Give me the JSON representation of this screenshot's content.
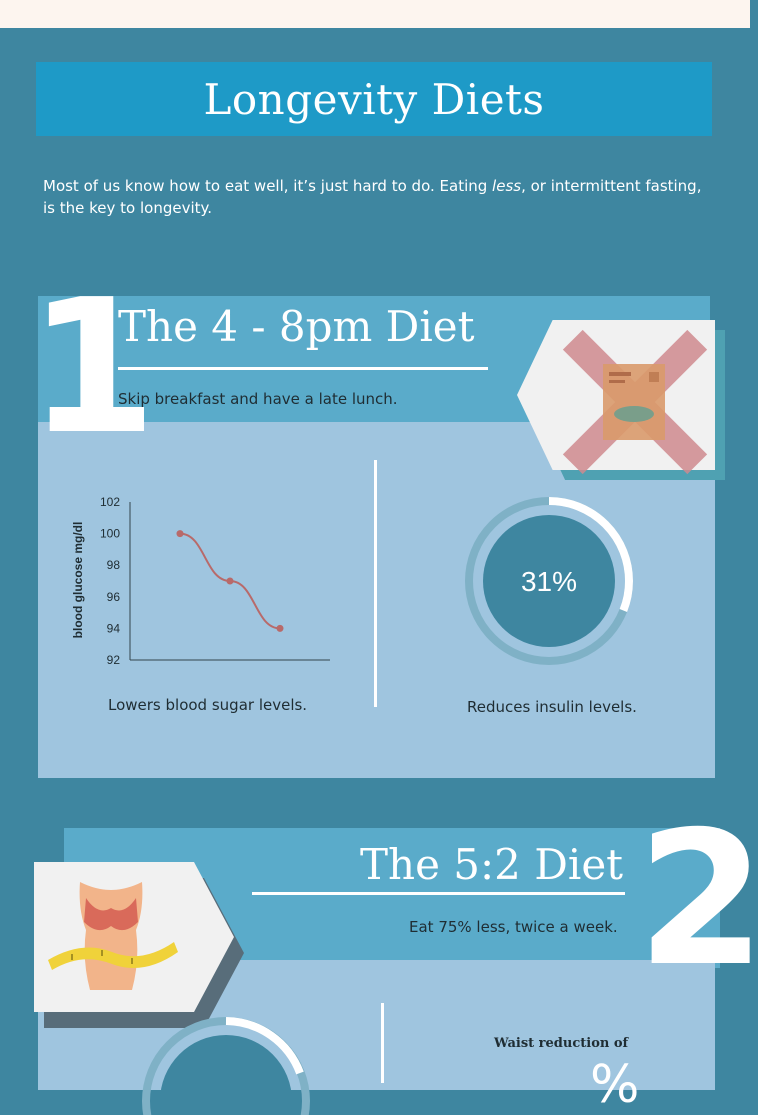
{
  "page": {
    "title": "Longevity Diets",
    "intro_part1": "Most of us know how to eat well, it’s just hard to do. Eating ",
    "intro_em": "less",
    "intro_part2": ", or intermittent fasting, is the key to longevity."
  },
  "section1": {
    "number": "1",
    "title": "The 4 - 8pm Diet",
    "subtitle": "Skip breakfast and have a late lunch.",
    "icon": "crossed-out-cereal-box-icon",
    "chart_caption": "Lowers blood sugar levels.",
    "donut_value": "31%",
    "donut_fraction": 0.31,
    "donut_caption": "Reduces insulin levels."
  },
  "chart_data": {
    "type": "line",
    "x": [
      1,
      2,
      3
    ],
    "y": [
      100,
      97,
      94
    ],
    "ylabel": "blood glucose mg/dl",
    "xlabel": "",
    "ylim": [
      92,
      102
    ],
    "yticks": [
      "102",
      "100",
      "98",
      "96",
      "94",
      "92"
    ],
    "grid": false,
    "color": "#b86a6a"
  },
  "section2": {
    "number": "2",
    "title": "The 5:2 Diet",
    "subtitle": "Eat 75% less, twice a week.",
    "icon": "waist-measuring-tape-icon",
    "waist_label": "Waist reduction of",
    "waist_value_partial": "%"
  },
  "colors": {
    "background": "#3e86a0",
    "title_bar": "#1e9ac7",
    "header": "#5aabca",
    "panel": "#9fc5df",
    "donut": "#3e86a0",
    "donut_track": "#7fb1c6",
    "cross": "#d08a8f"
  }
}
